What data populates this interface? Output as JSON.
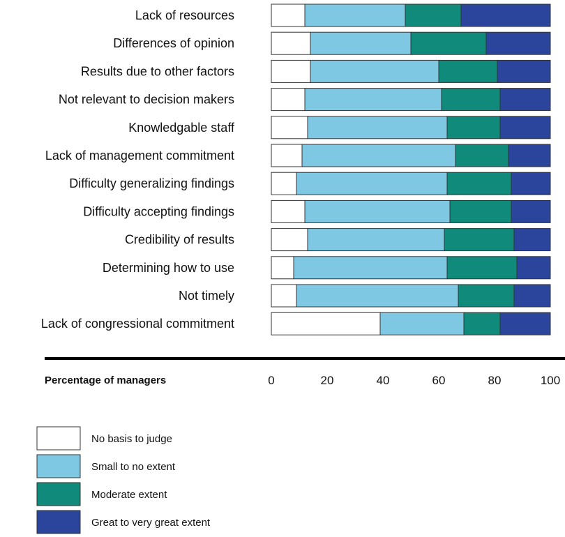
{
  "chart_data": {
    "type": "bar",
    "orientation": "horizontal",
    "stacked": true,
    "categories": [
      "Lack of resources",
      "Differences of opinion",
      "Results due to other factors",
      "Not relevant to decision makers",
      "Knowledgable staff",
      "Lack of management commitment",
      "Difficulty generalizing findings",
      "Difficulty accepting findings",
      "Credibility of results",
      "Determining how to use",
      "Not timely",
      "Lack of congressional commitment"
    ],
    "series": [
      {
        "name": "No basis to judge",
        "color": "#ffffff",
        "values": [
          12,
          14,
          14,
          12,
          13,
          11,
          9,
          12,
          13,
          8,
          9,
          39
        ]
      },
      {
        "name": "Small to no extent",
        "color": "#7ec8e3",
        "values": [
          36,
          36,
          46,
          49,
          50,
          55,
          54,
          52,
          49,
          55,
          58,
          30
        ]
      },
      {
        "name": "Moderate extent",
        "color": "#108a7a",
        "values": [
          20,
          27,
          21,
          21,
          19,
          19,
          23,
          22,
          25,
          25,
          20,
          13
        ]
      },
      {
        "name": "Great to very great extent",
        "color": "#2b459c",
        "values": [
          32,
          23,
          19,
          18,
          18,
          15,
          14,
          14,
          13,
          12,
          13,
          18
        ]
      }
    ],
    "xlabel": "Percentage of managers",
    "xlim": [
      0,
      100
    ],
    "xticks": [
      "0",
      "20",
      "40",
      "60",
      "80",
      "100"
    ],
    "legend_position": "bottom-left"
  }
}
